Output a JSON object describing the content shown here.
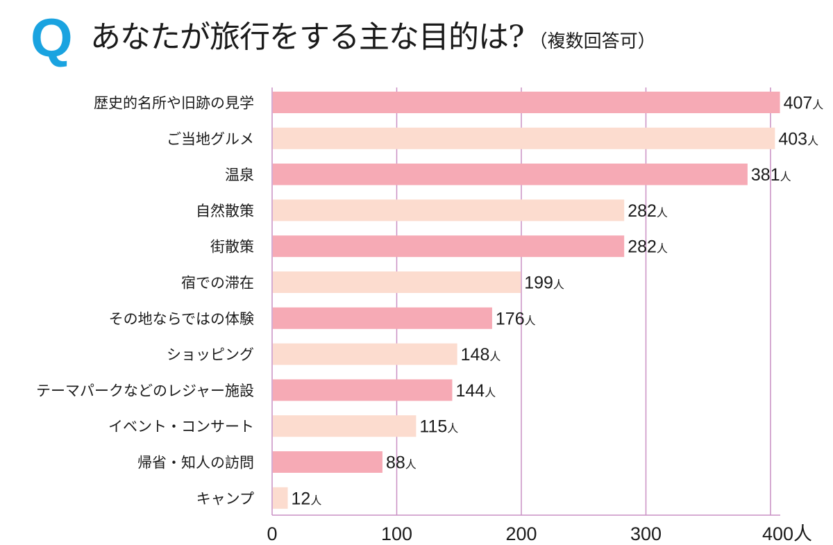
{
  "header": {
    "q_mark": "Q",
    "question": "あなたが旅行をする主な目的は?",
    "note": "（複数回答可）"
  },
  "colors": {
    "q_mark": "#1aa3e0",
    "bar_dark": "#f6aab5",
    "bar_light": "#fcdccf",
    "grid": "#c98fc4",
    "text": "#1a1a1a"
  },
  "chart_data": {
    "type": "bar",
    "orientation": "horizontal",
    "title": "あなたが旅行をする主な目的は?（複数回答可）",
    "xlabel": "",
    "ylabel": "",
    "unit": "人",
    "categories": [
      "歴史的名所や旧跡の見学",
      "ご当地グルメ",
      "温泉",
      "自然散策",
      "街散策",
      "宿での滞在",
      "その地ならではの体験",
      "ショッピング",
      "テーマパークなどのレジャー施設",
      "イベント・コンサート",
      "帰省・知人の訪問",
      "キャンプ"
    ],
    "values": [
      407,
      403,
      381,
      282,
      282,
      199,
      176,
      148,
      144,
      115,
      88,
      12
    ],
    "value_labels": [
      "407",
      "403",
      "381",
      "282",
      "282",
      "199",
      "176",
      "148",
      "144",
      "115",
      "88",
      "12"
    ],
    "xlim": [
      0,
      400
    ],
    "xticks": [
      0,
      100,
      200,
      300,
      400
    ],
    "xtick_labels": [
      "0",
      "100",
      "200",
      "300",
      "400人"
    ],
    "grid": true,
    "legend": "none",
    "bar_color_pattern": "alternating dark pink / light peach"
  }
}
